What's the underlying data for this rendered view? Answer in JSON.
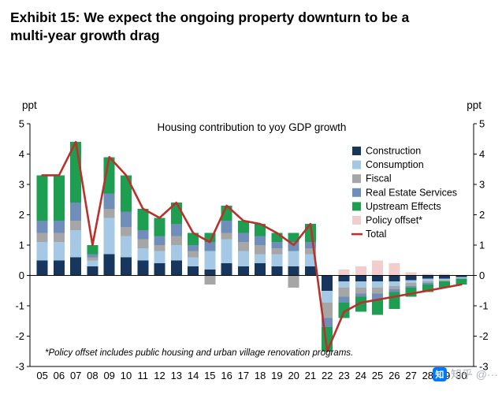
{
  "header": {
    "exhibit_title": "Exhibit 15: We expect the ongoing property downturn to be a multi-year growth drag"
  },
  "chart_data": {
    "type": "bar",
    "subtype": "stacked-bar-with-line",
    "title": "Housing contribution to yoy GDP growth",
    "unit": "ppt",
    "categories": [
      "05",
      "06",
      "07",
      "08",
      "09",
      "10",
      "11",
      "12",
      "13",
      "14",
      "15",
      "16",
      "17",
      "18",
      "19",
      "20",
      "21",
      "22",
      "23",
      "24",
      "25",
      "26",
      "27",
      "28",
      "29",
      "30"
    ],
    "series": [
      {
        "name": "Construction",
        "color": "#17365d",
        "values": [
          0.5,
          0.5,
          0.6,
          0.3,
          0.7,
          0.6,
          0.5,
          0.4,
          0.5,
          0.3,
          0.2,
          0.4,
          0.3,
          0.4,
          0.3,
          0.3,
          0.3,
          -0.5,
          -0.2,
          -0.2,
          -0.2,
          -0.2,
          -0.15,
          -0.1,
          -0.1,
          -0.05
        ]
      },
      {
        "name": "Consumption",
        "color": "#a5c9e5",
        "values": [
          0.6,
          0.6,
          0.9,
          0.2,
          1.2,
          0.7,
          0.4,
          0.4,
          0.5,
          0.3,
          0.6,
          0.8,
          0.5,
          0.3,
          0.4,
          0.5,
          0.4,
          -0.4,
          -0.2,
          -0.2,
          -0.2,
          -0.15,
          -0.1,
          -0.1,
          -0.05,
          -0.05
        ]
      },
      {
        "name": "Fiscal",
        "color": "#a6a6a6",
        "values": [
          0.3,
          0.3,
          0.3,
          0.1,
          0.3,
          0.3,
          0.3,
          0.2,
          0.3,
          0.2,
          -0.3,
          0.2,
          0.3,
          0.3,
          0.2,
          -0.4,
          0.2,
          -0.5,
          -0.3,
          -0.2,
          -0.2,
          -0.1,
          -0.1,
          -0.05,
          -0.05,
          0
        ]
      },
      {
        "name": "Real Estate Services",
        "color": "#6f8fba",
        "values": [
          0.4,
          0.4,
          0.6,
          0.1,
          0.5,
          0.5,
          0.3,
          0.3,
          0.4,
          0.2,
          0.3,
          0.4,
          0.3,
          0.3,
          0.2,
          0.3,
          0.2,
          -0.3,
          -0.2,
          -0.1,
          -0.2,
          -0.1,
          -0.05,
          -0.05,
          0,
          0
        ]
      },
      {
        "name": "Upstream Effects",
        "color": "#1e9e50",
        "values": [
          1.5,
          1.5,
          2.0,
          0.3,
          1.2,
          1.2,
          0.7,
          0.6,
          0.7,
          0.4,
          0.3,
          0.5,
          0.4,
          0.4,
          0.3,
          0.3,
          0.6,
          -0.8,
          -0.5,
          -0.5,
          -0.5,
          -0.55,
          -0.3,
          -0.25,
          -0.2,
          -0.2
        ]
      },
      {
        "name": "Policy offset*",
        "color": "#f2cdcd",
        "values": [
          0,
          0,
          0,
          0,
          0,
          0,
          0,
          0,
          0,
          0,
          0,
          0,
          0,
          0,
          0,
          0,
          0,
          0,
          0.2,
          0.3,
          0.5,
          0.4,
          0.1,
          0.05,
          0.05,
          0
        ]
      }
    ],
    "line_series": {
      "name": "Total",
      "color": "#b7322c",
      "values": [
        3.3,
        3.3,
        4.4,
        1.0,
        3.9,
        3.3,
        2.2,
        1.9,
        2.4,
        1.4,
        1.1,
        2.3,
        1.8,
        1.7,
        1.4,
        1.0,
        1.7,
        -2.5,
        -1.2,
        -0.9,
        -0.8,
        -0.7,
        -0.6,
        -0.5,
        -0.4,
        -0.3
      ]
    },
    "ylim": [
      -3,
      5
    ],
    "y_ticks": [
      5,
      4,
      3,
      2,
      1,
      0,
      -1,
      -2,
      -3
    ],
    "grid": false,
    "legend_position": "inside-right",
    "footnote": "*Policy offset includes public housing and urban village renovation programs."
  },
  "watermark": {
    "logo_glyph": "知",
    "text": "知乎 @···"
  }
}
